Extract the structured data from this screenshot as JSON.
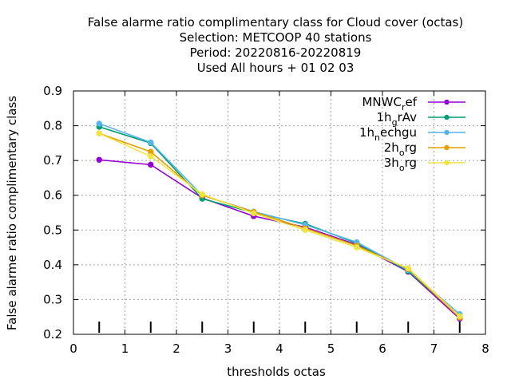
{
  "chart_data": {
    "type": "line",
    "title_lines": [
      "False alarme ratio complimentary class  for Cloud cover (octas)",
      "Selection: METCOOP     40 stations",
      "Period: 20220816-20220819",
      "Used  All hours + 01 02 03"
    ],
    "xlabel": "thresholds octas",
    "ylabel": "False alarme ratio complimentary class",
    "xlim": [
      0,
      8
    ],
    "ylim": [
      0.2,
      0.9
    ],
    "xticks": [
      0,
      1,
      2,
      3,
      4,
      5,
      6,
      7,
      8
    ],
    "yticks": [
      0.2,
      0.3,
      0.4,
      0.5,
      0.6,
      0.7,
      0.8,
      0.9
    ],
    "xtick_labels": [
      "0",
      "1",
      "2",
      "3",
      "4",
      "5",
      "6",
      "7",
      "8"
    ],
    "ytick_labels": [
      "0.2",
      "0.3",
      "0.4",
      "0.5",
      "0.6",
      "0.7",
      "0.8",
      "0.9"
    ],
    "grid": true,
    "legend_position": "top-right",
    "x": [
      0.5,
      1.5,
      2.5,
      3.5,
      4.5,
      5.5,
      6.5,
      7.5
    ],
    "series": [
      {
        "name": "MNWC_ref",
        "label_main": "MNWC",
        "label_sub": "r",
        "label_rest": "ef",
        "color": "#9400d3",
        "values": [
          0.702,
          0.688,
          0.592,
          0.54,
          0.508,
          0.458,
          0.38,
          0.245
        ]
      },
      {
        "name": "1h_grAv",
        "label_main": "1h",
        "label_sub": "g",
        "label_rest": "rAv",
        "color": "#009e73",
        "values": [
          0.797,
          0.75,
          0.59,
          0.55,
          0.518,
          0.462,
          0.382,
          0.252
        ]
      },
      {
        "name": "1h_nechgu",
        "label_main": "1h",
        "label_sub": "n",
        "label_rest": "echgu",
        "color": "#56b4e9",
        "values": [
          0.806,
          0.752,
          0.6,
          0.553,
          0.515,
          0.465,
          0.385,
          0.258
        ]
      },
      {
        "name": "2h_org",
        "label_main": "2h",
        "label_sub": "o",
        "label_rest": "rg",
        "color": "#e69f00",
        "values": [
          0.778,
          0.725,
          0.6,
          0.552,
          0.505,
          0.455,
          0.388,
          0.248
        ]
      },
      {
        "name": "3h_org",
        "label_main": "3h",
        "label_sub": "o",
        "label_rest": "rg",
        "color": "#f0e442",
        "values": [
          0.778,
          0.712,
          0.603,
          0.548,
          0.5,
          0.45,
          0.39,
          0.252
        ]
      }
    ],
    "baseline_markers_x": [
      0.5,
      1.5,
      2.5,
      3.5,
      4.5,
      5.5,
      6.5,
      7.5
    ]
  }
}
